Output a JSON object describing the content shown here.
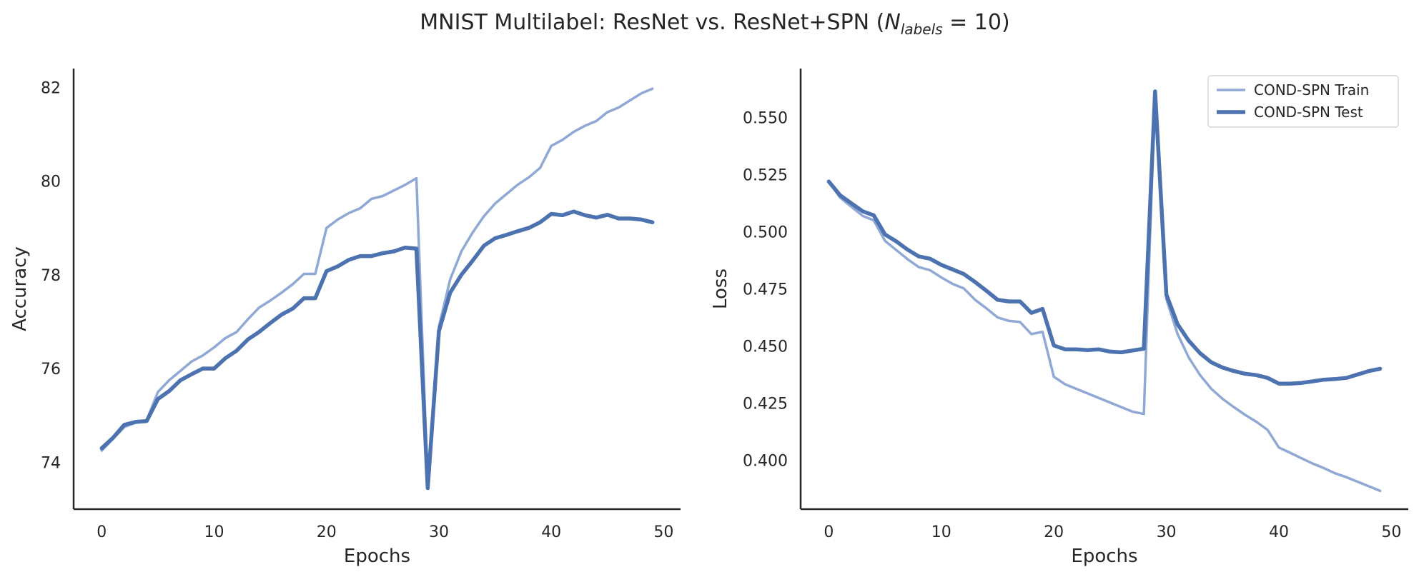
{
  "title": {
    "prefix": "MNIST Multilabel: ResNet vs. ResNet+SPN (",
    "math_var": "N",
    "math_sub": "labels",
    "math_rest": " = 10)"
  },
  "chart_data": [
    {
      "type": "line",
      "title": "",
      "xlabel": "Epochs",
      "ylabel": "Accuracy",
      "xlim": [
        -2.5,
        51.5
      ],
      "ylim": [
        73.0,
        82.4
      ],
      "xticks": [
        0,
        10,
        20,
        30,
        40,
        50
      ],
      "yticks": [
        74,
        76,
        78,
        80,
        82
      ],
      "grid": false,
      "legend": false,
      "series": [
        {
          "name": "",
          "color": "#8fa8d4",
          "x": [
            0,
            1,
            2,
            3,
            4,
            5,
            6,
            7,
            8,
            9,
            10,
            11,
            12,
            13,
            14,
            15,
            16,
            17,
            18,
            19,
            20,
            21,
            22,
            23,
            24,
            25,
            26,
            27,
            28,
            29,
            30,
            31,
            32,
            33,
            34,
            35,
            36,
            37,
            38,
            39,
            40,
            41,
            42,
            43,
            44,
            45,
            46,
            47,
            48,
            49
          ],
          "values": [
            74.25,
            74.5,
            74.75,
            74.85,
            74.9,
            75.5,
            75.75,
            75.95,
            76.15,
            76.28,
            76.45,
            76.65,
            76.78,
            77.05,
            77.3,
            77.45,
            77.62,
            77.8,
            78.02,
            78.02,
            79.0,
            79.18,
            79.32,
            79.42,
            79.62,
            79.68,
            79.8,
            79.92,
            80.06,
            73.55,
            76.9,
            77.9,
            78.5,
            78.9,
            79.25,
            79.52,
            79.72,
            79.92,
            80.08,
            80.28,
            80.75,
            80.88,
            81.05,
            81.18,
            81.28,
            81.47,
            81.57,
            81.72,
            81.87,
            81.97
          ]
        },
        {
          "name": "",
          "color": "#4c72b0",
          "x": [
            0,
            1,
            2,
            3,
            4,
            5,
            6,
            7,
            8,
            9,
            10,
            11,
            12,
            13,
            14,
            15,
            16,
            17,
            18,
            19,
            20,
            21,
            22,
            23,
            24,
            25,
            26,
            27,
            28,
            29,
            30,
            31,
            32,
            33,
            34,
            35,
            36,
            37,
            38,
            39,
            40,
            41,
            42,
            43,
            44,
            45,
            46,
            47,
            48,
            49
          ],
          "values": [
            74.3,
            74.52,
            74.8,
            74.86,
            74.88,
            75.35,
            75.52,
            75.75,
            75.88,
            76.0,
            76.0,
            76.22,
            76.38,
            76.62,
            76.78,
            76.97,
            77.15,
            77.28,
            77.5,
            77.5,
            78.08,
            78.18,
            78.32,
            78.4,
            78.4,
            78.46,
            78.5,
            78.58,
            78.56,
            73.45,
            76.8,
            77.62,
            78.0,
            78.3,
            78.62,
            78.78,
            78.85,
            78.93,
            79.0,
            79.12,
            79.3,
            79.27,
            79.35,
            79.27,
            79.22,
            79.28,
            79.2,
            79.2,
            79.18,
            79.12
          ]
        }
      ]
    },
    {
      "type": "line",
      "title": "",
      "xlabel": "Epochs",
      "ylabel": "Loss",
      "xlim": [
        -2.5,
        51.5
      ],
      "ylim": [
        0.3785,
        0.5715
      ],
      "xticks": [
        0,
        10,
        20,
        30,
        40,
        50
      ],
      "yticks": [
        "0.400",
        "0.425",
        "0.450",
        "0.475",
        "0.500",
        "0.525",
        "0.550"
      ],
      "grid": false,
      "legend": "top-right",
      "series": [
        {
          "name": "COND-SPN Train",
          "color": "#8fa8d4",
          "x": [
            0,
            1,
            2,
            3,
            4,
            5,
            6,
            7,
            8,
            9,
            10,
            11,
            12,
            13,
            14,
            15,
            16,
            17,
            18,
            19,
            20,
            21,
            22,
            23,
            24,
            25,
            26,
            27,
            28,
            29,
            30,
            31,
            32,
            33,
            34,
            35,
            36,
            37,
            38,
            39,
            40,
            41,
            42,
            43,
            44,
            45,
            46,
            47,
            48,
            49
          ],
          "values": [
            0.522,
            0.515,
            0.511,
            0.507,
            0.505,
            0.496,
            0.492,
            0.488,
            0.4845,
            0.4832,
            0.48,
            0.4772,
            0.4752,
            0.4702,
            0.4665,
            0.4625,
            0.461,
            0.4605,
            0.4552,
            0.4562,
            0.4365,
            0.4332,
            0.4312,
            0.4292,
            0.4272,
            0.4252,
            0.4232,
            0.4212,
            0.4202,
            0.561,
            0.4705,
            0.4552,
            0.4448,
            0.4372,
            0.4312,
            0.4268,
            0.4232,
            0.4198,
            0.4168,
            0.4132,
            0.4055,
            0.4032,
            0.4008,
            0.3985,
            0.3965,
            0.3942,
            0.3925,
            0.3905,
            0.3885,
            0.3865
          ]
        },
        {
          "name": "COND-SPN Test",
          "color": "#4c72b0",
          "x": [
            0,
            1,
            2,
            3,
            4,
            5,
            6,
            7,
            8,
            9,
            10,
            11,
            12,
            13,
            14,
            15,
            16,
            17,
            18,
            19,
            20,
            21,
            22,
            23,
            24,
            25,
            26,
            27,
            28,
            29,
            30,
            31,
            32,
            33,
            34,
            35,
            36,
            37,
            38,
            39,
            40,
            41,
            42,
            43,
            44,
            45,
            46,
            47,
            48,
            49
          ],
          "values": [
            0.522,
            0.516,
            0.5125,
            0.509,
            0.5072,
            0.4988,
            0.4958,
            0.4922,
            0.4892,
            0.4882,
            0.4855,
            0.4835,
            0.4815,
            0.478,
            0.4742,
            0.4702,
            0.4695,
            0.4695,
            0.4645,
            0.4662,
            0.4502,
            0.4485,
            0.4485,
            0.4482,
            0.4485,
            0.4475,
            0.4472,
            0.448,
            0.4488,
            0.5615,
            0.4725,
            0.4595,
            0.4522,
            0.4468,
            0.4428,
            0.4405,
            0.439,
            0.4378,
            0.4372,
            0.436,
            0.4335,
            0.4335,
            0.4338,
            0.4345,
            0.4352,
            0.4355,
            0.436,
            0.4375,
            0.439,
            0.44
          ]
        }
      ]
    }
  ]
}
